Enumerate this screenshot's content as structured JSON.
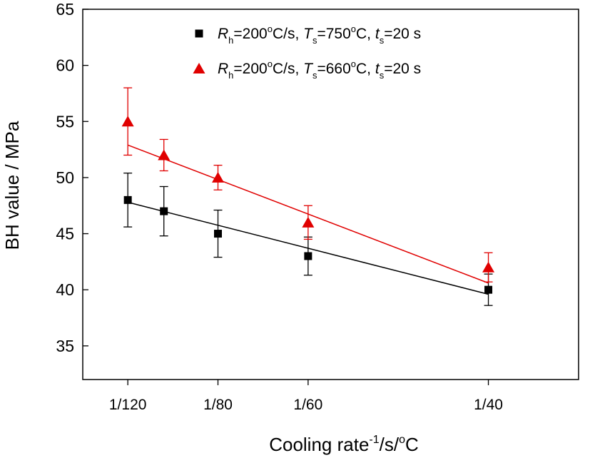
{
  "chart_data": {
    "type": "scatter",
    "xlabel": {
      "main": "Cooling rate",
      "sup1": "-1",
      "mid": "/s/",
      "sup2": "o",
      "end": "C"
    },
    "ylabel": "BH value / MPa",
    "xlim": [
      0.00625,
      0.02917
    ],
    "ylim": [
      32,
      65
    ],
    "x_ticks": [
      {
        "value": 0.008333,
        "label": "1/120"
      },
      {
        "value": 0.0125,
        "label": "1/80"
      },
      {
        "value": 0.016667,
        "label": "1/60"
      },
      {
        "value": 0.025,
        "label": "1/40"
      }
    ],
    "y_ticks": [
      35,
      40,
      45,
      50,
      55,
      60,
      65
    ],
    "grid": false,
    "legend_position": "top",
    "series": [
      {
        "name": "Rh=200°C/s, Ts=750°C, ts=20 s",
        "legend_parts": {
          "R": "R",
          "hsub": "h",
          "rate": "=200",
          "deg1": "o",
          "c1": "C/s,  ",
          "T": "T",
          "ssub": "s",
          "temp": "=750",
          "deg2": "o",
          "c2": "C,  ",
          "t": "t",
          "tsub": "s",
          "time": "=20 s"
        },
        "color": "#000000",
        "marker": "square",
        "x": [
          0.008333,
          0.01,
          0.0125,
          0.016667,
          0.025
        ],
        "y": [
          48,
          47,
          45,
          43,
          40
        ],
        "err": [
          2.4,
          2.2,
          2.1,
          1.7,
          1.4
        ],
        "fit": [
          [
            0.008333,
            47.8
          ],
          [
            0.025,
            39.6
          ]
        ]
      },
      {
        "name": "Rh=200°C/s, Ts=660°C, ts=20 s",
        "legend_parts": {
          "R": "R",
          "hsub": "h",
          "rate": "=200",
          "deg1": "o",
          "c1": "C/s,  ",
          "T": "T",
          "ssub": "s",
          "temp": "=660",
          "deg2": "o",
          "c2": "C,  ",
          "t": "t",
          "tsub": "s",
          "time": "=20 s"
        },
        "color": "#e00000",
        "marker": "triangle",
        "x": [
          0.008333,
          0.01,
          0.0125,
          0.016667,
          0.025
        ],
        "y": [
          55,
          52,
          50,
          46,
          42
        ],
        "err": [
          3.0,
          1.4,
          1.1,
          1.5,
          1.3
        ],
        "fit": [
          [
            0.008333,
            52.9
          ],
          [
            0.025,
            40.6
          ]
        ]
      }
    ]
  }
}
